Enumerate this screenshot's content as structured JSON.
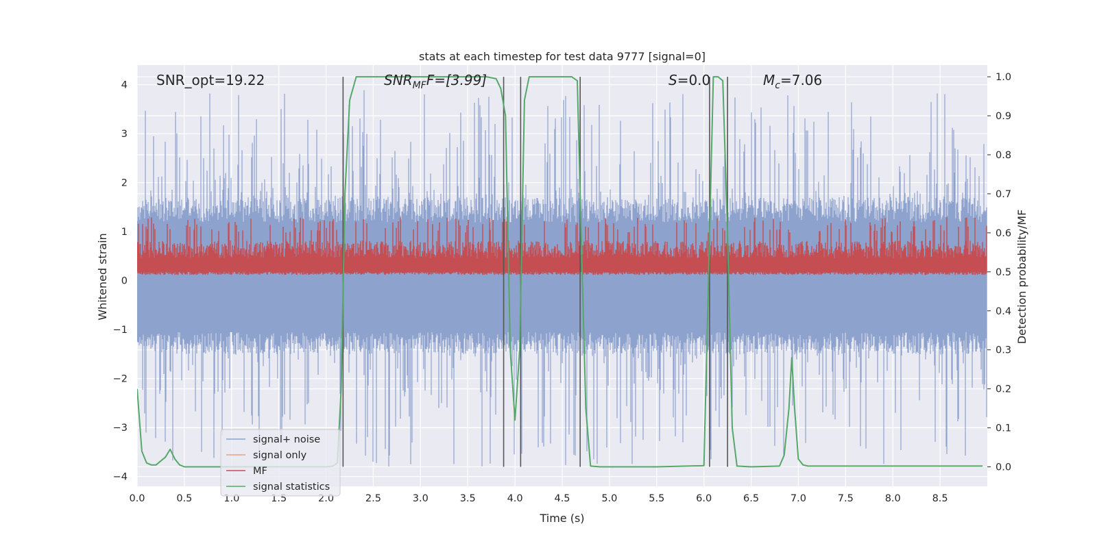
{
  "chart_data": {
    "type": "line",
    "title": "stats at each timestep for test data 9777 [signal=0]",
    "xlabel": "Time (s)",
    "ylabel": "Whitened strain",
    "ylabel_right": "Detection probability/MF",
    "xlim": [
      0.0,
      9.0
    ],
    "ylim": [
      -4.2,
      4.4
    ],
    "ylim_right": [
      -0.05,
      1.03
    ],
    "x_ticks": [
      "0.0",
      "0.5",
      "1.0",
      "1.5",
      "2.0",
      "2.5",
      "3.0",
      "3.5",
      "4.0",
      "4.5",
      "5.0",
      "5.5",
      "6.0",
      "6.5",
      "7.0",
      "7.5",
      "8.0",
      "8.5"
    ],
    "y_ticks": [
      "4",
      "3",
      "2",
      "1",
      "0",
      "−1",
      "−2",
      "−3",
      "−4"
    ],
    "y_ticks_right": [
      "1.0",
      "0.9",
      "0.8",
      "0.7",
      "0.6",
      "0.5",
      "0.4",
      "0.3",
      "0.2",
      "0.1",
      "0.0"
    ],
    "annotations": {
      "snr_opt": "SNR_opt=19.22",
      "snr_mf_main": "SNR",
      "snr_mf_sub": "MF",
      "snr_mf_value": "F=[3.99]",
      "s_main": "S",
      "s_value": "=0.0",
      "mc_main": "M",
      "mc_sub": "c",
      "mc_value": "=7.06"
    },
    "legend": {
      "location": "lower-left",
      "entries": [
        "signal+ noise",
        "signal only",
        "MF",
        "signal statistics"
      ]
    },
    "colors": {
      "signal_noise": "#8da2cd",
      "signal_only": "#e99f83",
      "mf": "#c44e52",
      "signal_statistics": "#55a868",
      "vertical_lines": "#555555",
      "background": "#eaeaf2",
      "grid": "#ffffff"
    },
    "noise_envelope": {
      "typical_upper": 1.7,
      "typical_lower": -1.5,
      "peak_upper": 3.9,
      "peak_lower": -3.8
    },
    "mf_band": {
      "axis": "right",
      "lower": 0.5,
      "upper": 0.6,
      "peak": 0.64
    },
    "vertical_lines_x": [
      2.18,
      3.88,
      4.06,
      4.69,
      6.06,
      6.25
    ],
    "series": [
      {
        "name": "signal statistics",
        "axis": "right",
        "x": [
          0.0,
          0.05,
          0.1,
          0.15,
          0.2,
          0.25,
          0.3,
          0.35,
          0.4,
          0.45,
          0.5,
          0.55,
          0.6,
          0.7,
          0.8,
          1.0,
          1.5,
          2.0,
          2.07,
          2.12,
          2.16,
          2.2,
          2.25,
          2.32,
          2.4,
          2.6,
          3.0,
          3.5,
          3.7,
          3.8,
          3.85,
          3.9,
          3.95,
          4.0,
          4.05,
          4.1,
          4.15,
          4.2,
          4.3,
          4.6,
          4.66,
          4.7,
          4.75,
          4.8,
          4.9,
          5.5,
          6.0,
          6.05,
          6.1,
          6.15,
          6.2,
          6.25,
          6.3,
          6.35,
          6.5,
          6.8,
          6.85,
          6.9,
          6.93,
          6.96,
          7.0,
          7.05,
          7.1,
          7.5,
          8.0,
          8.5,
          8.95
        ],
        "y": [
          0.2,
          0.04,
          0.01,
          0.005,
          0.005,
          0.015,
          0.025,
          0.045,
          0.02,
          0.005,
          0.0,
          0.0,
          0.0,
          0.0,
          0.0,
          0.0,
          0.0,
          0.0,
          0.002,
          0.01,
          0.2,
          0.7,
          0.94,
          1.0,
          1.0,
          1.0,
          1.0,
          1.0,
          1.0,
          0.995,
          0.97,
          0.9,
          0.3,
          0.12,
          0.3,
          0.94,
          1.0,
          1.0,
          1.0,
          1.0,
          0.99,
          0.6,
          0.15,
          0.002,
          0.0,
          0.0,
          0.003,
          0.5,
          1.0,
          1.0,
          0.99,
          0.6,
          0.1,
          0.002,
          0.0,
          0.002,
          0.03,
          0.15,
          0.28,
          0.15,
          0.02,
          0.005,
          0.002,
          0.002,
          0.002,
          0.002,
          0.002
        ]
      }
    ]
  }
}
